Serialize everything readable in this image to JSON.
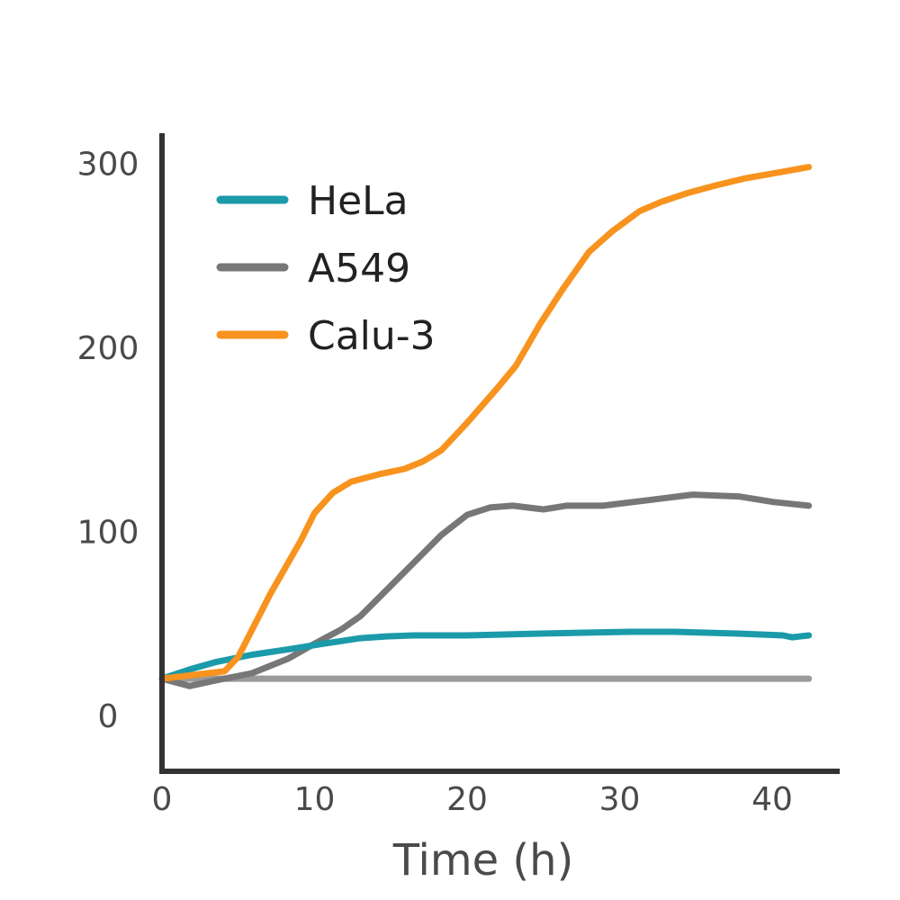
{
  "chart_data": {
    "type": "line",
    "title": "",
    "xlabel": "Time (h)",
    "ylabel": "",
    "xlim": [
      0,
      44.4
    ],
    "ylim": [
      -30,
      316
    ],
    "xticks": [
      "0",
      "10",
      "20",
      "30",
      "40"
    ],
    "yticks": [
      "0",
      "100",
      "200",
      "300"
    ],
    "grid": false,
    "legend_position": "top-left",
    "series": [
      {
        "name": "HeLa",
        "color": "#1b9aaa",
        "x": [
          0,
          1.8,
          3.5,
          5.9,
          8.3,
          10.6,
          13,
          14.7,
          16.5,
          20,
          24.8,
          30.7,
          33.6,
          37.8,
          40.7,
          41.3,
          42.4
        ],
        "y": [
          20,
          25,
          29,
          33,
          36,
          39,
          42,
          43,
          43.5,
          43.5,
          44.5,
          45.5,
          45.5,
          44.5,
          43.5,
          42.5,
          43.5
        ]
      },
      {
        "name": "A549",
        "color": "#777777",
        "x": [
          0,
          1.8,
          3.5,
          5.9,
          8.3,
          10,
          11.8,
          13,
          14.7,
          16.5,
          18.3,
          20,
          21.5,
          23,
          25,
          26.5,
          28.9,
          31.9,
          34.8,
          37.8,
          40.1,
          42.4
        ],
        "y": [
          20,
          16,
          19,
          23,
          31,
          39,
          47,
          54,
          68,
          83,
          98,
          109,
          113,
          114,
          112,
          114,
          114,
          117,
          120,
          119,
          116,
          114
        ]
      },
      {
        "name": "Calu-3",
        "color": "#f7931e",
        "x": [
          0,
          4.1,
          5,
          7.1,
          9.1,
          10,
          11.2,
          12.4,
          14.2,
          15.9,
          17.1,
          18.3,
          20,
          22.1,
          23.2,
          24.8,
          26.3,
          28,
          29.5,
          31.3,
          32.7,
          34.5,
          36.3,
          38.3,
          40.4,
          42.4
        ],
        "y": [
          20,
          24,
          32,
          66,
          95,
          110,
          121,
          127,
          131,
          134,
          138,
          144,
          159,
          179,
          190,
          213,
          232,
          252,
          263,
          274,
          279,
          284,
          288,
          292,
          295,
          298
        ]
      },
      {
        "color": "#9a9a9a",
        "x": [
          0,
          42.4
        ],
        "y": [
          20,
          20
        ]
      }
    ]
  }
}
